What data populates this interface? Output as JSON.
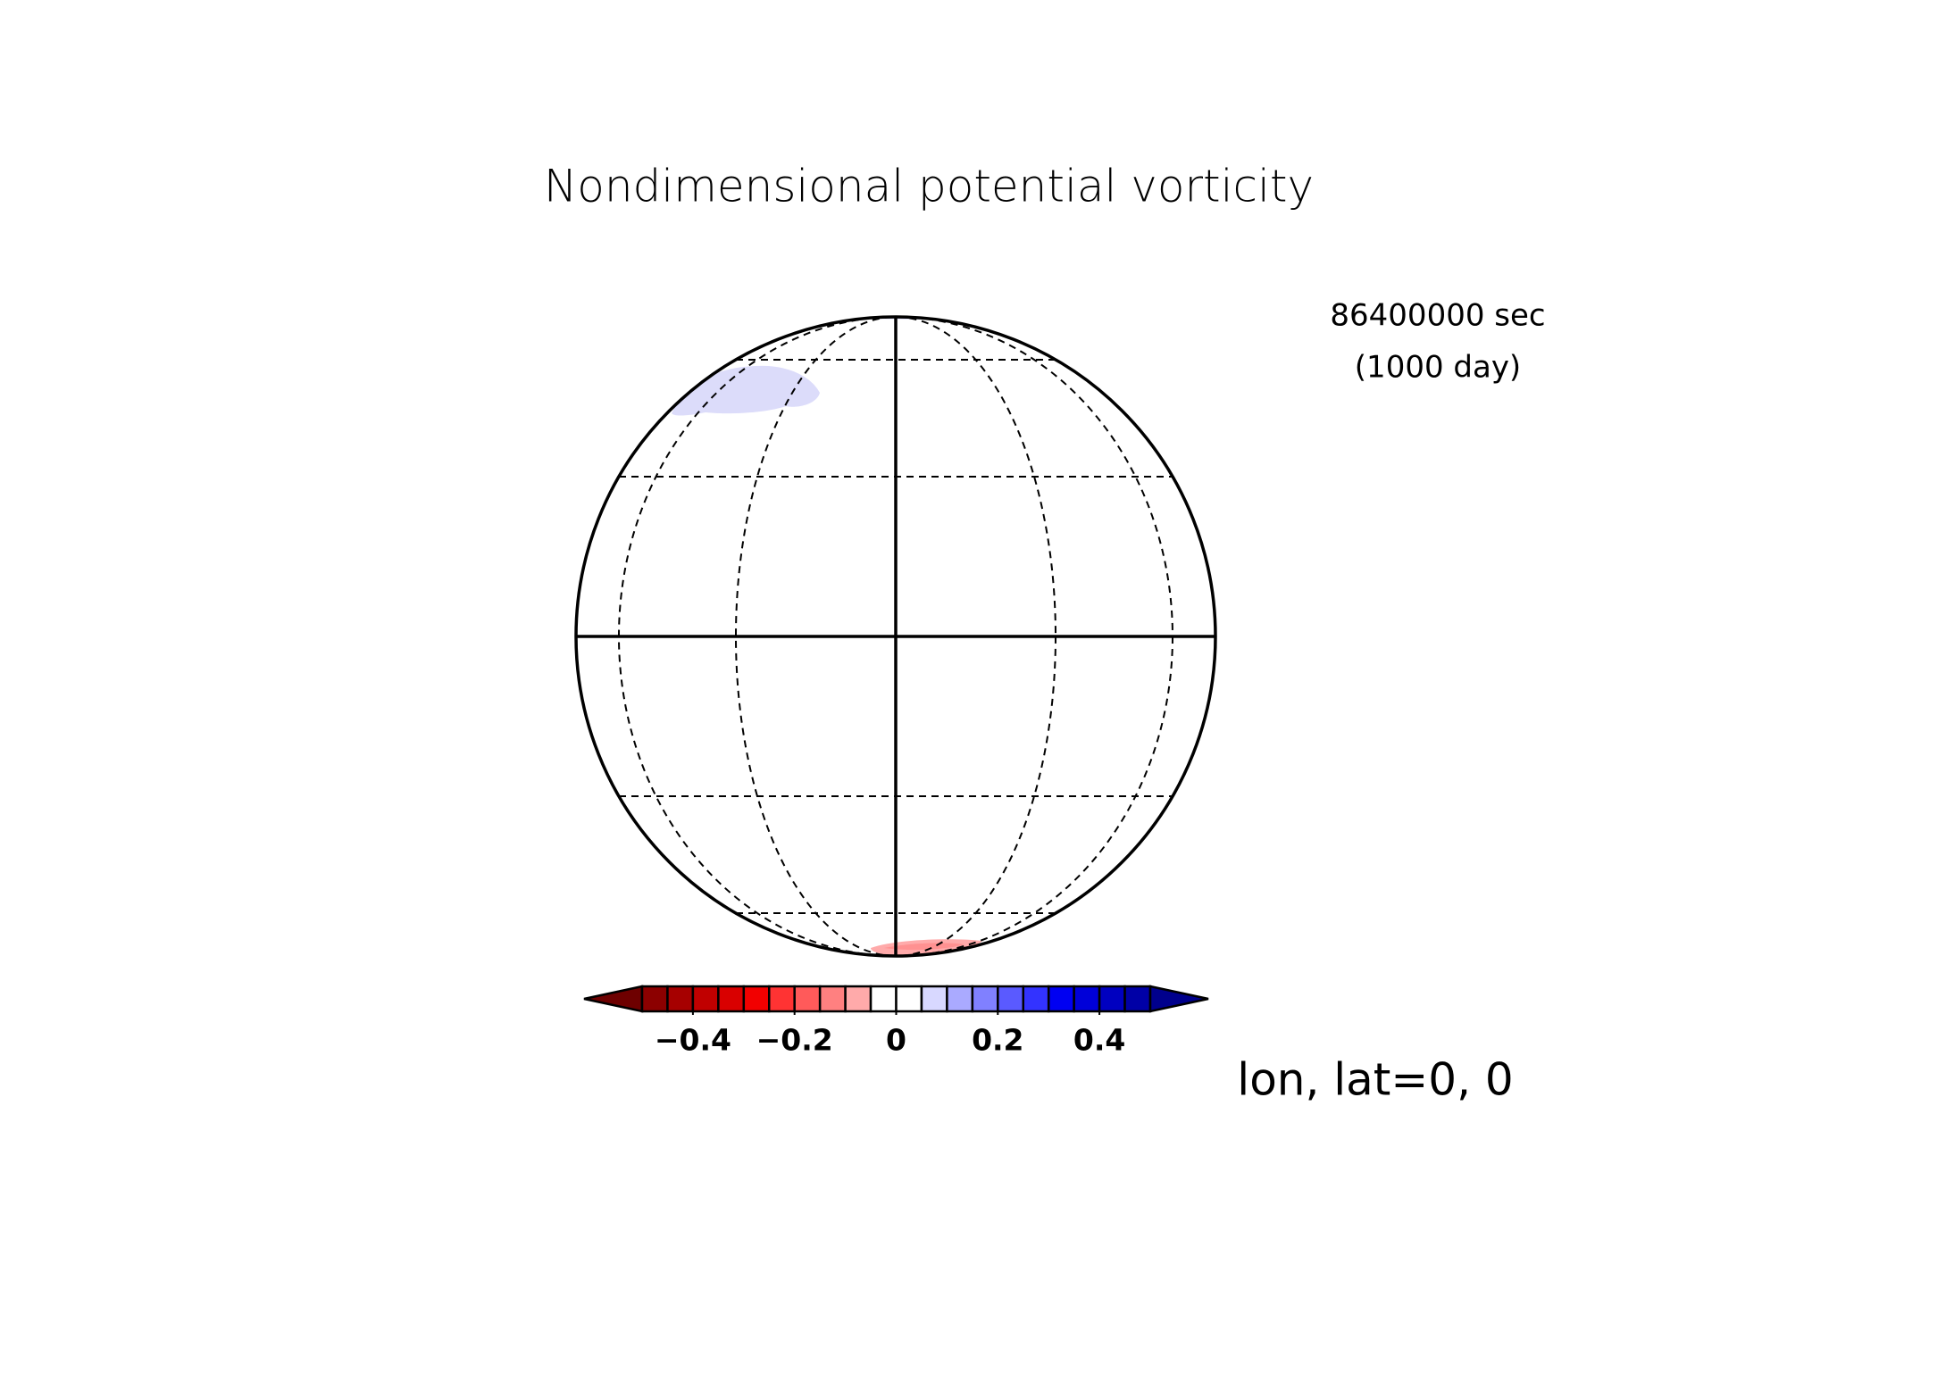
{
  "map": {
    "title": "Nondimensional potential vorticity",
    "time_label": "86400000 sec",
    "day_label": "(1000 day)",
    "position_label": "lon, lat=0, 0",
    "colorbar": {
      "xlim": [
        -0.5,
        0.5
      ],
      "xticks": [
        {
          "value": -0.4,
          "label": "−0.4"
        },
        {
          "value": -0.2,
          "label": "−0.2"
        },
        0,
        0.2,
        0.4
      ],
      "colors": [
        "#6e0000",
        "#8c0000",
        "#a60000",
        "#c00000",
        "#d90000",
        "#f20000",
        "#ff3333",
        "#ff5a5a",
        "#ff8080",
        "#ffaaaa",
        "#ffffff",
        "#ffffff",
        "#d8d8ff",
        "#aaaaff",
        "#8080ff",
        "#5a5aff",
        "#3333ff",
        "#0000f2",
        "#0000d9",
        "#0000c0",
        "#0000a6",
        "#00008c"
      ]
    }
  }
}
